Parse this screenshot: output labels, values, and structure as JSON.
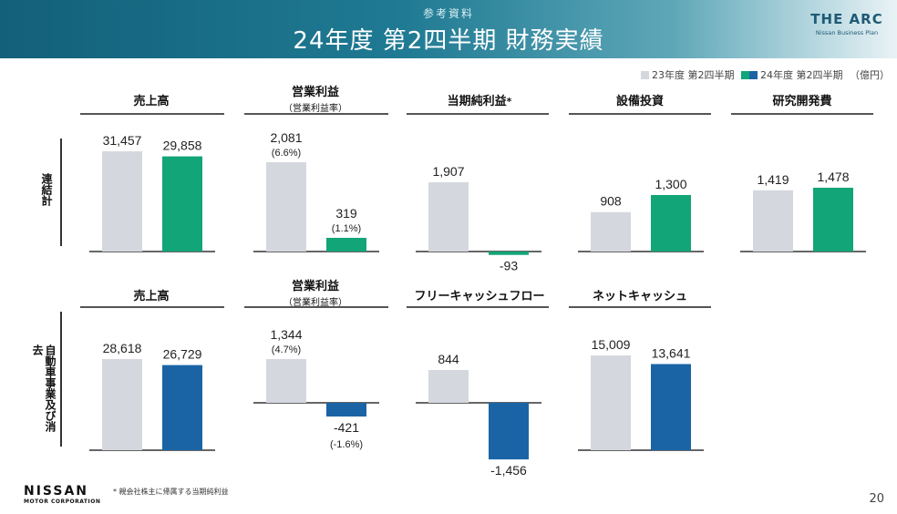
{
  "header": {
    "ref_label": "参考資料",
    "title": "24年度 第2四半期 財務実績",
    "logo_main": "THE ARC",
    "logo_sub": "Nissan Business Plan"
  },
  "legend": {
    "item1": "23年度 第2四半期",
    "item2": "24年度 第2四半期",
    "unit": "（億円）"
  },
  "colors": {
    "prior": "#d4d8de",
    "green": "#12a577",
    "blue": "#1a64a6",
    "baseline": "#333333",
    "header_start": "#13607a"
  },
  "rows": [
    {
      "label": "連結計"
    },
    {
      "label": "自動車事業及び消去"
    }
  ],
  "chart_data": [
    {
      "type": "bar",
      "row": 0,
      "title": "売上高",
      "subtitle": "",
      "series_names": [
        "23年度 第2四半期",
        "24年度 第2四半期"
      ],
      "values": [
        31457,
        29858
      ],
      "labels": [
        "31,457",
        "29,858"
      ],
      "sublabels": [
        "",
        ""
      ],
      "color": "green"
    },
    {
      "type": "bar",
      "row": 0,
      "title": "営業利益",
      "subtitle": "（営業利益率）",
      "series_names": [
        "23年度 第2四半期",
        "24年度 第2四半期"
      ],
      "values": [
        2081,
        319
      ],
      "labels": [
        "2,081",
        "319"
      ],
      "sublabels": [
        "(6.6%)",
        "(1.1%)"
      ],
      "color": "green"
    },
    {
      "type": "bar",
      "row": 0,
      "title": "当期純利益",
      "title_mark": "*",
      "subtitle": "",
      "series_names": [
        "23年度 第2四半期",
        "24年度 第2四半期"
      ],
      "values": [
        1907,
        -93
      ],
      "labels": [
        "1,907",
        "-93"
      ],
      "sublabels": [
        "",
        ""
      ],
      "color": "green"
    },
    {
      "type": "bar",
      "row": 0,
      "title": "設備投資",
      "subtitle": "",
      "series_names": [
        "23年度 第2四半期",
        "24年度 第2四半期"
      ],
      "values": [
        908,
        1300
      ],
      "labels": [
        "908",
        "1,300"
      ],
      "sublabels": [
        "",
        ""
      ],
      "color": "green"
    },
    {
      "type": "bar",
      "row": 0,
      "title": "研究開発費",
      "subtitle": "",
      "series_names": [
        "23年度 第2四半期",
        "24年度 第2四半期"
      ],
      "values": [
        1419,
        1478
      ],
      "labels": [
        "1,419",
        "1,478"
      ],
      "sublabels": [
        "",
        ""
      ],
      "color": "green"
    },
    {
      "type": "bar",
      "row": 1,
      "title": "売上高",
      "subtitle": "",
      "series_names": [
        "23年度 第2四半期",
        "24年度 第2四半期"
      ],
      "values": [
        28618,
        26729
      ],
      "labels": [
        "28,618",
        "26,729"
      ],
      "sublabels": [
        "",
        ""
      ],
      "color": "blue"
    },
    {
      "type": "bar",
      "row": 1,
      "title": "営業利益",
      "subtitle": "（営業利益率）",
      "series_names": [
        "23年度 第2四半期",
        "24年度 第2四半期"
      ],
      "values": [
        1344,
        -421
      ],
      "labels": [
        "1,344",
        "-421"
      ],
      "sublabels": [
        "(4.7%)",
        "(-1.6%)"
      ],
      "color": "blue"
    },
    {
      "type": "bar",
      "row": 1,
      "title": "フリーキャッシュフロー",
      "subtitle": "",
      "series_names": [
        "23年度 第2四半期",
        "24年度 第2四半期"
      ],
      "values": [
        844,
        -1456
      ],
      "labels": [
        "844",
        "-1,456"
      ],
      "sublabels": [
        "",
        ""
      ],
      "color": "blue"
    },
    {
      "type": "bar",
      "row": 1,
      "title": "ネットキャッシュ",
      "subtitle": "",
      "series_names": [
        "23年度 第2四半期",
        "24年度 第2四半期"
      ],
      "values": [
        15009,
        13641
      ],
      "labels": [
        "15,009",
        "13,641"
      ],
      "sublabels": [
        "",
        ""
      ],
      "color": "blue"
    }
  ],
  "footer": {
    "brand": "NISSAN",
    "corp": "MOTOR CORPORATION",
    "footnote": "* 親会社株主に帰属する当期純利益",
    "page": "20"
  }
}
